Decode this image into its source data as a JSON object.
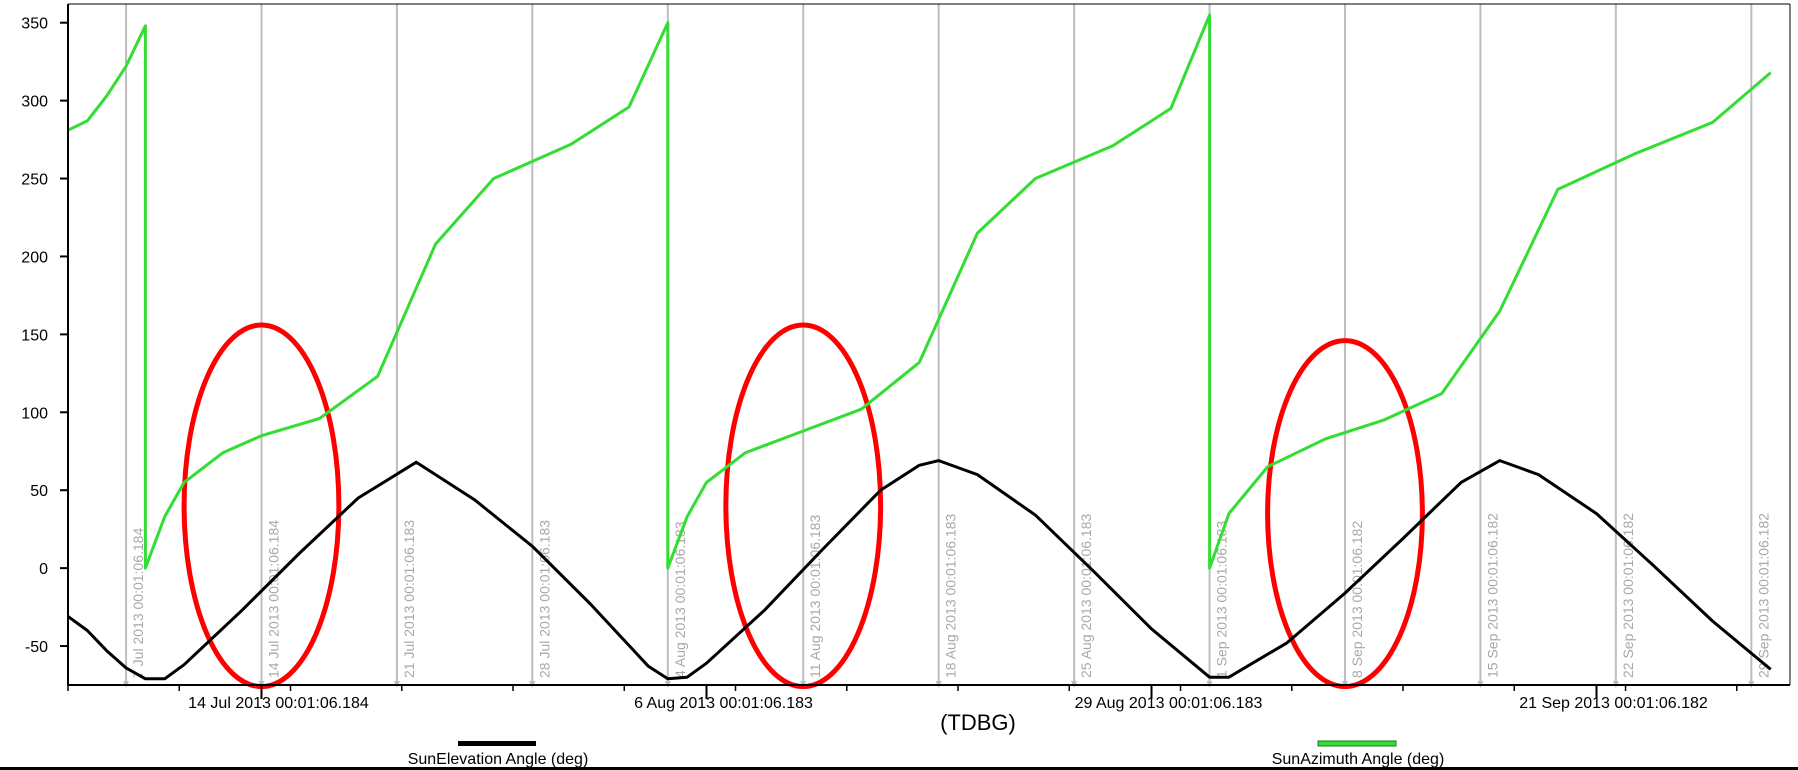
{
  "chart_data": {
    "type": "line",
    "xlabel": "(TDBG)",
    "x_range": [
      "2013-07-04",
      "2013-10-01"
    ],
    "ylim": [
      -75,
      362
    ],
    "y_ticks": [
      350,
      300,
      250,
      200,
      150,
      100,
      50,
      0,
      -50
    ],
    "x_ticks": [
      {
        "date": "2013-07-14",
        "label": "14 Jul 2013 00:01:06.184"
      },
      {
        "date": "2013-08-06",
        "label": "6 Aug 2013 00:01:06.183"
      },
      {
        "date": "2013-08-29",
        "label": "29 Aug 2013 00:01:06.183"
      },
      {
        "date": "2013-09-21",
        "label": "21 Sep 2013 00:01:06.182"
      }
    ],
    "epoch_lines": [
      {
        "date": "2013-07-07",
        "label": "7 Jul 2013 00:01:06.184"
      },
      {
        "date": "2013-07-14",
        "label": "14 Jul 2013 00:01:06.184"
      },
      {
        "date": "2013-07-21",
        "label": "21 Jul 2013 00:01:06.183"
      },
      {
        "date": "2013-07-28",
        "label": "28 Jul 2013 00:01:06.183"
      },
      {
        "date": "2013-08-04",
        "label": "4 Aug 2013 00:01:06.183"
      },
      {
        "date": "2013-08-11",
        "label": "11 Aug 2013 00:01:06.183"
      },
      {
        "date": "2013-08-18",
        "label": "18 Aug 2013 00:01:06.183"
      },
      {
        "date": "2013-08-25",
        "label": "25 Aug 2013 00:01:06.183"
      },
      {
        "date": "2013-09-01",
        "label": "1 Sep 2013 00:01:06.183"
      },
      {
        "date": "2013-09-08",
        "label": "8 Sep 2013 00:01:06.182"
      },
      {
        "date": "2013-09-15",
        "label": "15 Sep 2013 00:01:06.182"
      },
      {
        "date": "2013-09-22",
        "label": "22 Sep 2013 00:01:06.182"
      },
      {
        "date": "2013-09-29",
        "label": "29 Sep 2013 00:01:06.182"
      }
    ],
    "series": [
      {
        "name": "SunElevation Angle (deg)",
        "color": "#000000",
        "points": [
          [
            "2013-07-04",
            -31
          ],
          [
            "2013-07-05",
            -40
          ],
          [
            "2013-07-06",
            -53
          ],
          [
            "2013-07-07",
            -64
          ],
          [
            "2013-07-08",
            -71
          ],
          [
            "2013-07-09",
            -71
          ],
          [
            "2013-07-10",
            -62
          ],
          [
            "2013-07-13",
            -27
          ],
          [
            "2013-07-16",
            10
          ],
          [
            "2013-07-19",
            45
          ],
          [
            "2013-07-22",
            68
          ],
          [
            "2013-07-25",
            44
          ],
          [
            "2013-07-28",
            14
          ],
          [
            "2013-07-31",
            -23
          ],
          [
            "2013-08-03",
            -63
          ],
          [
            "2013-08-04",
            -71
          ],
          [
            "2013-08-05",
            -70
          ],
          [
            "2013-08-06",
            -61
          ],
          [
            "2013-08-09",
            -27
          ],
          [
            "2013-08-12",
            12
          ],
          [
            "2013-08-15",
            50
          ],
          [
            "2013-08-17",
            66
          ],
          [
            "2013-08-18",
            69
          ],
          [
            "2013-08-20",
            60
          ],
          [
            "2013-08-23",
            34
          ],
          [
            "2013-08-26",
            -2
          ],
          [
            "2013-08-29",
            -39
          ],
          [
            "2013-09-01",
            -70
          ],
          [
            "2013-09-02",
            -70
          ],
          [
            "2013-09-05",
            -48
          ],
          [
            "2013-09-08",
            -16
          ],
          [
            "2013-09-11",
            19
          ],
          [
            "2013-09-14",
            55
          ],
          [
            "2013-09-16",
            69
          ],
          [
            "2013-09-18",
            60
          ],
          [
            "2013-09-21",
            35
          ],
          [
            "2013-09-24",
            1
          ],
          [
            "2013-09-27",
            -34
          ],
          [
            "2013-09-30",
            -65
          ]
        ]
      },
      {
        "name": "SunAzimuth Angle (deg)",
        "color": "#33dd33",
        "points": [
          [
            "2013-07-04",
            281
          ],
          [
            "2013-07-05",
            287
          ],
          [
            "2013-07-06",
            303
          ],
          [
            "2013-07-07",
            322
          ],
          [
            "2013-07-08",
            348
          ],
          [
            "2013-07-08",
            0
          ],
          [
            "2013-07-09",
            33
          ],
          [
            "2013-07-10",
            55
          ],
          [
            "2013-07-12",
            74
          ],
          [
            "2013-07-14",
            85
          ],
          [
            "2013-07-17",
            96
          ],
          [
            "2013-07-20",
            123
          ],
          [
            "2013-07-23",
            208
          ],
          [
            "2013-07-26",
            250
          ],
          [
            "2013-07-30",
            272
          ],
          [
            "2013-08-02",
            296
          ],
          [
            "2013-08-04",
            350
          ],
          [
            "2013-08-04",
            0
          ],
          [
            "2013-08-05",
            33
          ],
          [
            "2013-08-06",
            55
          ],
          [
            "2013-08-08",
            74
          ],
          [
            "2013-08-11",
            88
          ],
          [
            "2013-08-14",
            102
          ],
          [
            "2013-08-17",
            132
          ],
          [
            "2013-08-20",
            215
          ],
          [
            "2013-08-23",
            250
          ],
          [
            "2013-08-27",
            271
          ],
          [
            "2013-08-30",
            295
          ],
          [
            "2013-09-01",
            355
          ],
          [
            "2013-09-01",
            0
          ],
          [
            "2013-09-02",
            35
          ],
          [
            "2013-09-04",
            65
          ],
          [
            "2013-09-07",
            83
          ],
          [
            "2013-09-10",
            95
          ],
          [
            "2013-09-13",
            112
          ],
          [
            "2013-09-16",
            165
          ],
          [
            "2013-09-19",
            243
          ],
          [
            "2013-09-23",
            266
          ],
          [
            "2013-09-27",
            286
          ],
          [
            "2013-09-30",
            318
          ]
        ]
      }
    ],
    "annotations": [
      {
        "type": "ellipse",
        "color": "#ff0000",
        "center": [
          "2013-07-14",
          40
        ],
        "x_half_width_days": 4,
        "y_half_height": 116
      },
      {
        "type": "ellipse",
        "color": "#ff0000",
        "center": [
          "2013-08-11",
          40
        ],
        "x_half_width_days": 4,
        "y_half_height": 116
      },
      {
        "type": "ellipse",
        "color": "#ff0000",
        "center": [
          "2013-09-08",
          35
        ],
        "x_half_width_days": 4,
        "y_half_height": 111
      }
    ]
  },
  "legend": [
    {
      "label": "SunElevation Angle (deg)",
      "color": "#000000"
    },
    {
      "label": "SunAzimuth Angle (deg)",
      "color": "#33dd33"
    }
  ]
}
